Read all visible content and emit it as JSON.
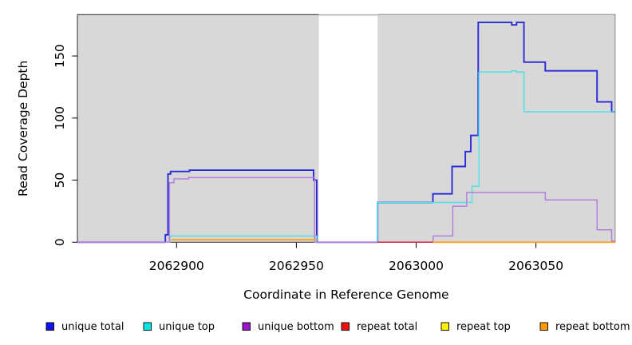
{
  "chart_data": {
    "type": "line",
    "title": "",
    "xlabel": "Coordinate in Reference Genome",
    "ylabel": "Read Coverage Depth",
    "xlim": [
      2062858.6,
      2063083
    ],
    "ylim": [
      0,
      183.3
    ],
    "grid": false,
    "legend_position": "bottom",
    "x_ticks": [
      2062900,
      2062950,
      2063000,
      2063050
    ],
    "x_tick_labels": [
      "2062900",
      "2062950",
      "2063000",
      "2063050"
    ],
    "y_ticks": [
      0,
      50,
      100,
      150
    ],
    "y_tick_labels": [
      "0",
      "50",
      "100",
      "150"
    ],
    "background_regions": [
      {
        "name": "covered-region-1",
        "x1": 2062858.6,
        "x2": 2062959.4,
        "color": "#d8d8d8",
        "full_bleed": false
      },
      {
        "name": "uncovered-gap",
        "x1": 2062959.4,
        "x2": 2062983.9,
        "color": "#ffffff",
        "full_bleed": true
      },
      {
        "name": "covered-region-2",
        "x1": 2062983.9,
        "x2": 2063083,
        "color": "#d8d8d8",
        "full_bleed": false
      }
    ],
    "series": [
      {
        "name": "unique total",
        "color": "#2a2ad6",
        "legend_color": "#1111ee",
        "width": 1.9,
        "segments": [
          [
            [
              2062858.6,
              0
            ],
            [
              2062895.3,
              6
            ],
            [
              2062896.4,
              55
            ],
            [
              2062897.5,
              57
            ],
            [
              2062905.4,
              58
            ],
            [
              2062957.2,
              50
            ],
            [
              2062958.5,
              0
            ],
            [
              2062983.9,
              32
            ],
            [
              2063007,
              39
            ],
            [
              2063015,
              61
            ],
            [
              2063020.5,
              73
            ],
            [
              2063022.8,
              86
            ],
            [
              2063025.9,
              177
            ],
            [
              2063039.9,
              175
            ],
            [
              2063041.9,
              177
            ],
            [
              2063045,
              145
            ],
            [
              2063053.9,
              138
            ],
            [
              2063075.5,
              113
            ],
            [
              2063081.6,
              105
            ],
            [
              2063083,
              105
            ]
          ]
        ]
      },
      {
        "name": "unique top",
        "color": "#52dfe9",
        "legend_color": "#00e8e8",
        "width": 1.5,
        "segments": [
          [
            [
              2062858.6,
              0
            ],
            [
              2062897.2,
              5
            ],
            [
              2062958.4,
              0
            ],
            [
              2062983.9,
              32
            ],
            [
              2063023.3,
              45
            ],
            [
              2063026.2,
              137
            ],
            [
              2063039.9,
              138
            ],
            [
              2063041.9,
              137
            ],
            [
              2063045,
              105
            ],
            [
              2063083,
              105
            ]
          ]
        ]
      },
      {
        "name": "unique bottom",
        "color": "#b27fdd",
        "legend_color": "#9916cc",
        "width": 1.5,
        "segments": [
          [
            [
              2062858.6,
              0
            ],
            [
              2062897,
              48
            ],
            [
              2062898.9,
              51
            ],
            [
              2062905,
              52
            ],
            [
              2062957.6,
              0
            ],
            [
              2063007.1,
              5
            ],
            [
              2063015.3,
              29
            ],
            [
              2063021.1,
              40
            ],
            [
              2063053.9,
              34
            ],
            [
              2063075.5,
              10
            ],
            [
              2063081.6,
              1
            ],
            [
              2063083,
              0
            ]
          ]
        ]
      },
      {
        "name": "repeat total",
        "color": "#cc2244",
        "legend_color": "#ee1111",
        "width": 1.5,
        "segments": [
          [
            [
              2062983.9,
              0
            ],
            [
              2063083,
              0
            ]
          ]
        ]
      },
      {
        "name": "repeat top",
        "color": "#ffef00",
        "legend_color": "#ffef00",
        "width": 1.5,
        "segments": [
          [
            [
              2063007,
              0
            ],
            [
              2063083,
              0
            ]
          ]
        ]
      },
      {
        "name": "repeat bottom",
        "color": "#ff9d1c",
        "legend_color": "#ff9900",
        "width": 1.9,
        "segments": [
          [
            [
              2062897.8,
              2
            ],
            [
              2062958.4,
              2
            ]
          ],
          [
            [
              2063007,
              0
            ],
            [
              2063083,
              0
            ]
          ]
        ]
      }
    ]
  }
}
